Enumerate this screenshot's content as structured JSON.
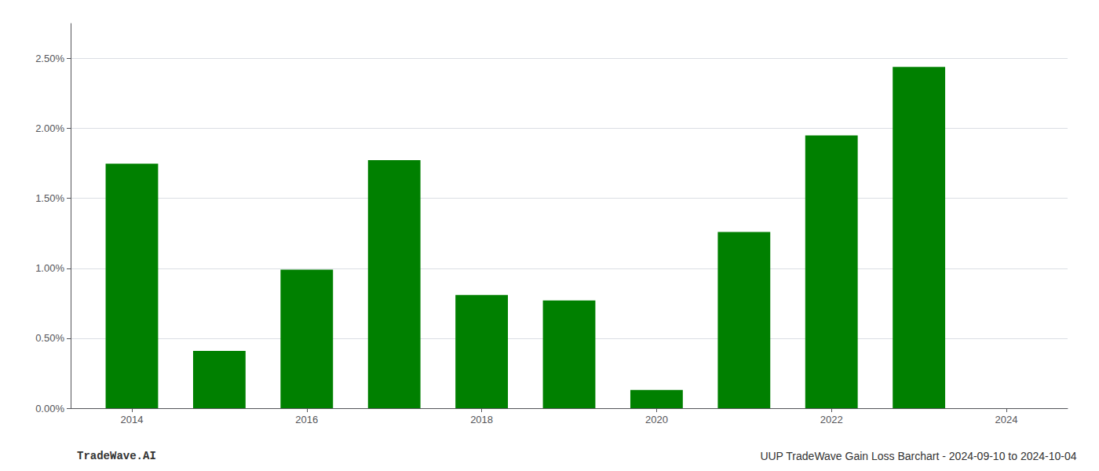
{
  "chart_data": {
    "type": "bar",
    "x": [
      2014,
      2015,
      2016,
      2017,
      2018,
      2019,
      2020,
      2021,
      2022,
      2023
    ],
    "values": [
      1.748,
      0.41,
      0.99,
      1.773,
      0.81,
      0.77,
      0.13,
      1.26,
      1.95,
      2.44
    ],
    "color": "#008000",
    "xlim": [
      2013.3,
      2024.7
    ],
    "xticks": [
      2014,
      2016,
      2018,
      2020,
      2022,
      2024
    ],
    "ylim": [
      0.0,
      2.75
    ],
    "yticks": [
      {
        "value": 0.0,
        "label": "0.00%"
      },
      {
        "value": 0.5,
        "label": "0.50%"
      },
      {
        "value": 1.0,
        "label": "1.00%"
      },
      {
        "value": 1.5,
        "label": "1.50%"
      },
      {
        "value": 2.0,
        "label": "2.00%"
      },
      {
        "value": 2.5,
        "label": "2.50%"
      }
    ],
    "grid": true,
    "annotations": [
      "TradeWave.AI",
      "UUP TradeWave Gain Loss Barchart - 2024-09-10 to 2024-10-04"
    ]
  }
}
